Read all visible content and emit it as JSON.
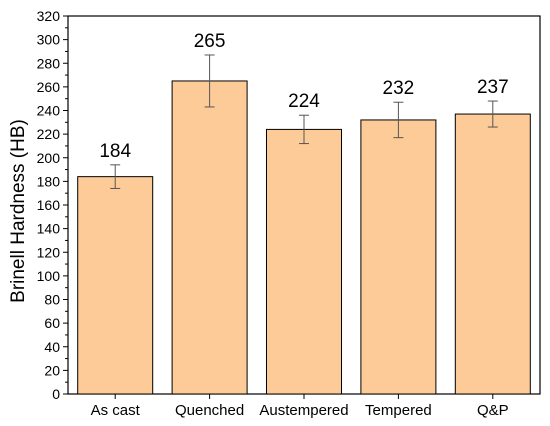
{
  "chart_data": {
    "type": "bar",
    "categories": [
      "As cast",
      "Quenched",
      "Austempered",
      "Tempered",
      "Q&P"
    ],
    "values": [
      184,
      265,
      224,
      232,
      237
    ],
    "error_low": [
      174,
      243,
      212,
      217,
      226
    ],
    "error_high": [
      194,
      287,
      236,
      247,
      248
    ],
    "data_labels": [
      "184",
      "265",
      "224",
      "232",
      "237"
    ],
    "ylabel": "Brinell Hardness (HB)",
    "xlabel": "",
    "ylim": [
      0,
      320
    ],
    "yticks": [
      0,
      20,
      40,
      60,
      80,
      100,
      120,
      140,
      160,
      180,
      200,
      220,
      240,
      260,
      280,
      300,
      320
    ],
    "ytick_labels": [
      "0",
      "20",
      "40",
      "60",
      "80",
      "100",
      "120",
      "140",
      "160",
      "180",
      "200",
      "220",
      "240",
      "260",
      "280",
      "300",
      "320"
    ],
    "grid": false,
    "bar_color": "#FDCB97",
    "bar_edge_color": "#000000",
    "error_bar_color": "#555555"
  }
}
